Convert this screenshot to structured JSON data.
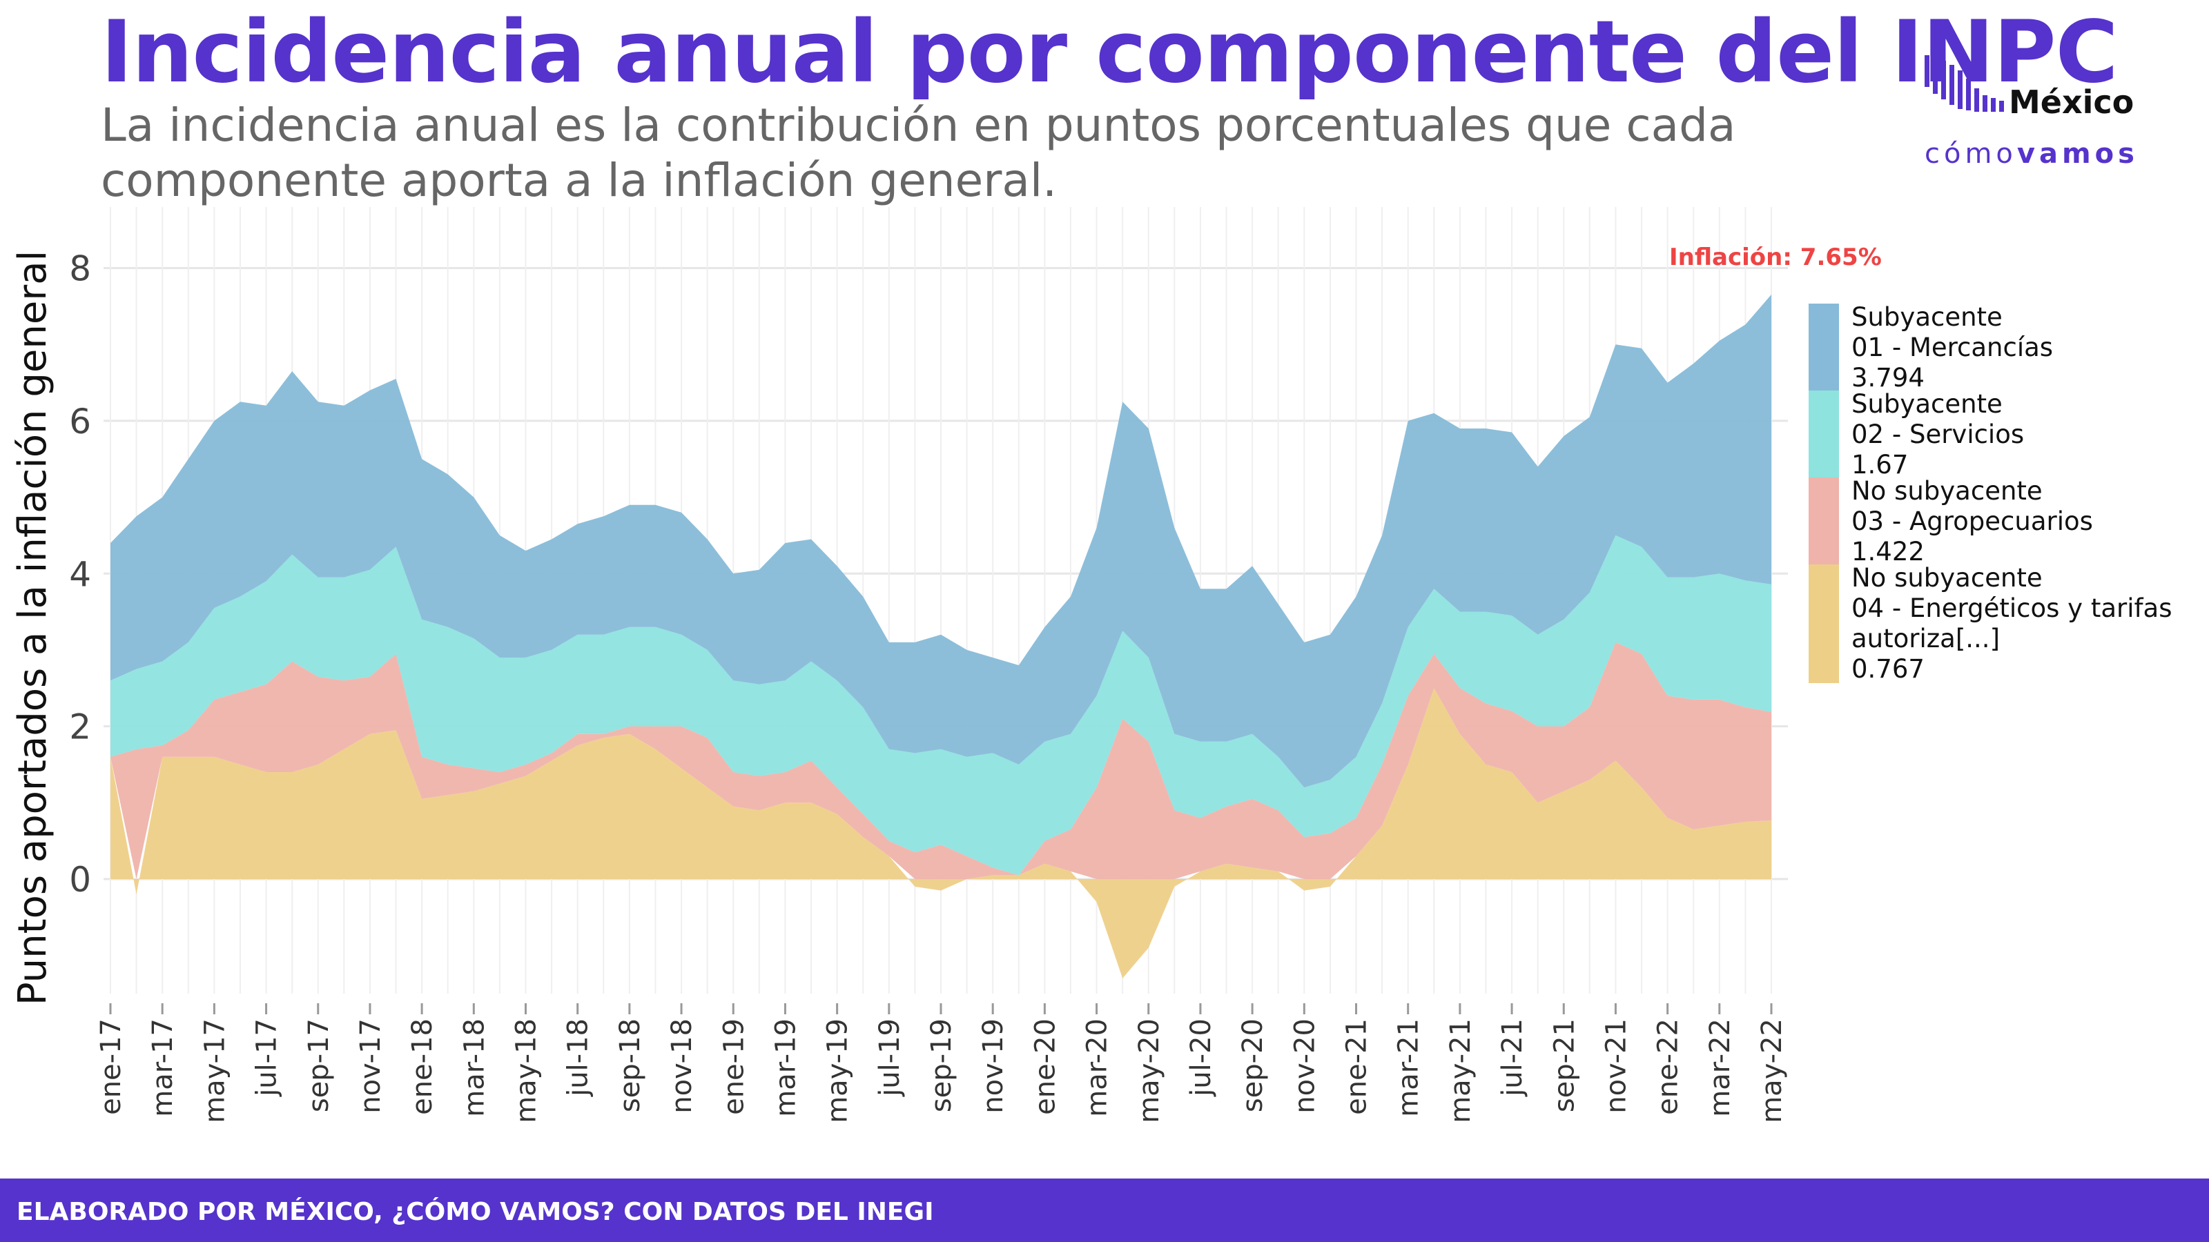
{
  "header": {
    "title": "Incidencia anual por componente del INPC",
    "subtitle": "La incidencia anual es la contribución en puntos porcentuales que cada componente aporta a la inflación general."
  },
  "logo": {
    "name": "México",
    "tagline_light": "cómo",
    "tagline_bold": "vamos",
    "color": "#5533cc"
  },
  "footer": {
    "text": "ELABORADO POR MÉXICO, ¿CÓMO VAMOS? CON DATOS DEL INEGI"
  },
  "chart_data": {
    "type": "area",
    "stacked": true,
    "ylabel": "Puntos aportados a la inflación general",
    "xlabel": "",
    "ylim": [
      -1.5,
      8.8
    ],
    "yticks": [
      0,
      2,
      4,
      6,
      8
    ],
    "grid": true,
    "legend_position": "right",
    "x": [
      "ene-17",
      "feb-17",
      "mar-17",
      "abr-17",
      "may-17",
      "jun-17",
      "jul-17",
      "ago-17",
      "sep-17",
      "oct-17",
      "nov-17",
      "dic-17",
      "ene-18",
      "feb-18",
      "mar-18",
      "abr-18",
      "may-18",
      "jun-18",
      "jul-18",
      "ago-18",
      "sep-18",
      "oct-18",
      "nov-18",
      "dic-18",
      "ene-19",
      "feb-19",
      "mar-19",
      "abr-19",
      "may-19",
      "jun-19",
      "jul-19",
      "ago-19",
      "sep-19",
      "oct-19",
      "nov-19",
      "dic-19",
      "ene-20",
      "feb-20",
      "mar-20",
      "abr-20",
      "may-20",
      "jun-20",
      "jul-20",
      "ago-20",
      "sep-20",
      "oct-20",
      "nov-20",
      "dic-20",
      "ene-21",
      "feb-21",
      "mar-21",
      "abr-21",
      "may-21",
      "jun-21",
      "jul-21",
      "ago-21",
      "sep-21",
      "oct-21",
      "nov-21",
      "dic-21",
      "ene-22",
      "feb-22",
      "mar-22",
      "abr-22",
      "may-22"
    ],
    "x_tick_labels": [
      "ene-17",
      "mar-17",
      "may-17",
      "jul-17",
      "sep-17",
      "nov-17",
      "ene-18",
      "mar-18",
      "may-18",
      "jul-18",
      "sep-18",
      "nov-18",
      "ene-19",
      "mar-19",
      "may-19",
      "jul-19",
      "sep-19",
      "nov-19",
      "ene-20",
      "mar-20",
      "may-20",
      "jul-20",
      "sep-20",
      "nov-20",
      "ene-21",
      "mar-21",
      "may-21",
      "jul-21",
      "sep-21",
      "nov-21",
      "ene-22",
      "mar-22",
      "may-22"
    ],
    "series": [
      {
        "name": "No subyacente\n04 - Energéticos y tarifas autoriza[...]\n0.767",
        "color": "#eecf88",
        "values": [
          1.6,
          -0.2,
          1.6,
          1.6,
          1.6,
          1.5,
          1.4,
          1.4,
          1.5,
          1.7,
          1.9,
          1.95,
          1.05,
          1.1,
          1.15,
          1.25,
          1.35,
          1.55,
          1.75,
          1.85,
          1.9,
          1.7,
          1.45,
          1.2,
          0.95,
          0.9,
          1.0,
          1.0,
          0.85,
          0.55,
          0.3,
          -0.1,
          -0.15,
          0.0,
          0.05,
          0.05,
          0.2,
          0.1,
          -0.3,
          -1.3,
          -0.9,
          -0.1,
          0.1,
          0.2,
          0.15,
          0.1,
          -0.15,
          -0.1,
          0.3,
          0.7,
          1.5,
          2.5,
          1.9,
          1.5,
          1.4,
          1.0,
          1.15,
          1.3,
          1.55,
          1.2,
          0.8,
          0.65,
          0.7,
          0.75,
          0.767
        ]
      },
      {
        "name": "No subyacente\n03 - Agropecuarios\n1.422",
        "color": "#efb3ab",
        "values": [
          0.0,
          1.7,
          0.15,
          0.35,
          0.75,
          0.95,
          1.15,
          1.45,
          1.15,
          0.9,
          0.75,
          1.0,
          0.55,
          0.4,
          0.3,
          0.15,
          0.15,
          0.1,
          0.15,
          0.05,
          0.1,
          0.3,
          0.55,
          0.65,
          0.45,
          0.45,
          0.4,
          0.55,
          0.35,
          0.3,
          0.2,
          0.35,
          0.45,
          0.3,
          0.1,
          0.0,
          0.3,
          0.55,
          1.2,
          2.1,
          1.8,
          0.9,
          0.7,
          0.75,
          0.9,
          0.8,
          0.55,
          0.6,
          0.5,
          0.8,
          0.9,
          0.45,
          0.6,
          0.8,
          0.8,
          1.0,
          0.85,
          0.95,
          1.55,
          1.75,
          1.6,
          1.7,
          1.65,
          1.5,
          1.422
        ]
      },
      {
        "name": "Subyacente\n02 - Servicios\n1.67",
        "color": "#8ee3df",
        "values": [
          1.0,
          1.05,
          1.1,
          1.15,
          1.2,
          1.25,
          1.35,
          1.4,
          1.3,
          1.35,
          1.4,
          1.4,
          1.8,
          1.8,
          1.7,
          1.5,
          1.4,
          1.35,
          1.3,
          1.3,
          1.3,
          1.3,
          1.2,
          1.15,
          1.2,
          1.2,
          1.2,
          1.3,
          1.4,
          1.4,
          1.2,
          1.3,
          1.25,
          1.3,
          1.5,
          1.45,
          1.3,
          1.25,
          1.2,
          1.15,
          1.1,
          1.0,
          1.0,
          0.85,
          0.85,
          0.7,
          0.65,
          0.7,
          0.8,
          0.8,
          0.9,
          0.85,
          1.0,
          1.2,
          1.25,
          1.2,
          1.4,
          1.5,
          1.4,
          1.4,
          1.55,
          1.6,
          1.65,
          1.66,
          1.67
        ]
      },
      {
        "name": "Subyacente\n01 - Mercancías\n3.794",
        "color": "#86bad8",
        "values": [
          1.8,
          2.0,
          2.15,
          2.4,
          2.45,
          2.55,
          2.3,
          2.4,
          2.3,
          2.25,
          2.35,
          2.2,
          2.1,
          2.0,
          1.85,
          1.6,
          1.4,
          1.45,
          1.45,
          1.55,
          1.6,
          1.6,
          1.6,
          1.45,
          1.4,
          1.5,
          1.8,
          1.6,
          1.5,
          1.45,
          1.4,
          1.45,
          1.5,
          1.4,
          1.25,
          1.3,
          1.5,
          1.8,
          2.2,
          3.0,
          3.0,
          2.7,
          2.0,
          2.0,
          2.2,
          2.0,
          1.9,
          1.9,
          2.1,
          2.2,
          2.7,
          2.3,
          2.4,
          2.4,
          2.4,
          2.2,
          2.4,
          2.3,
          2.5,
          2.6,
          2.55,
          2.8,
          3.05,
          3.35,
          3.794
        ]
      }
    ],
    "annotation": {
      "text": "Inflación: 7.65%",
      "color": "#ee4444"
    },
    "legend_items": [
      {
        "lines": [
          "Subyacente",
          "01 - Mercancías",
          "3.794"
        ],
        "color": "#86bad8"
      },
      {
        "lines": [
          "Subyacente",
          "02 - Servicios",
          "1.67"
        ],
        "color": "#8ee3df"
      },
      {
        "lines": [
          "No subyacente",
          "03 - Agropecuarios",
          "1.422"
        ],
        "color": "#efb3ab"
      },
      {
        "lines": [
          "No subyacente",
          "04 - Energéticos y tarifas",
          "autoriza[...]",
          "0.767"
        ],
        "color": "#eecf88"
      }
    ]
  }
}
